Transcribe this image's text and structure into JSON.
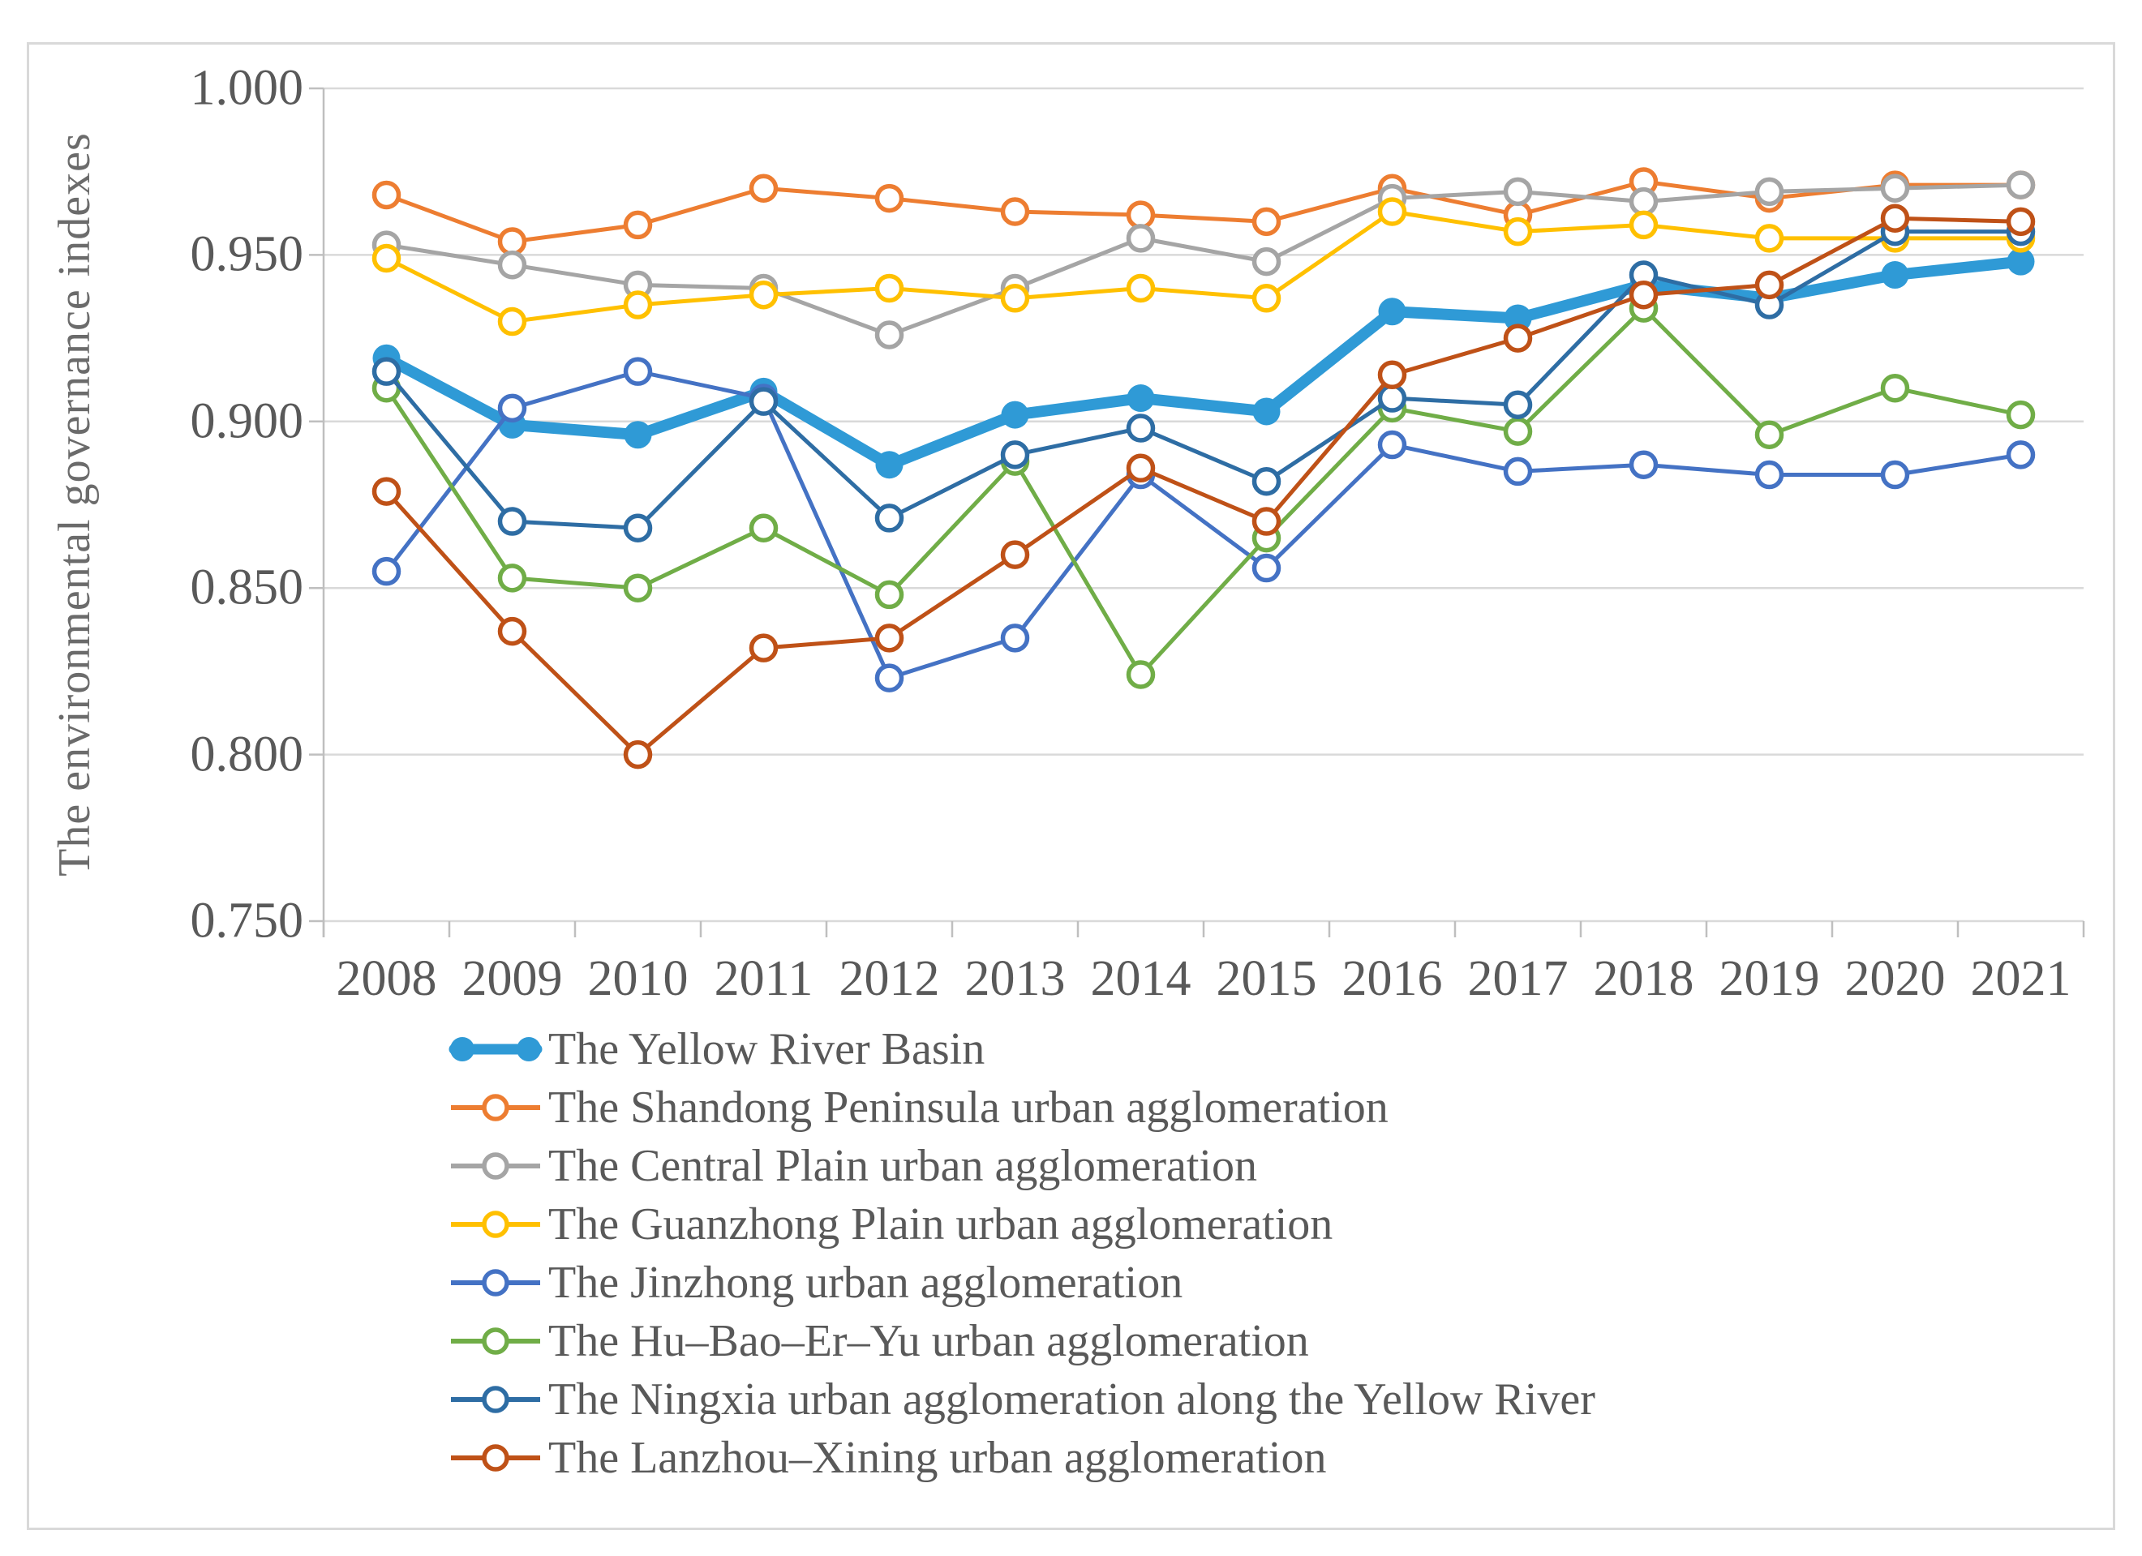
{
  "figure": {
    "background": "#ffffff",
    "frame_border_color": "#d9d9d9"
  },
  "axes": {
    "y_title": "The environmental governance indexes",
    "y_ticks": [
      "1.000",
      "0.950",
      "0.900",
      "0.850",
      "0.800",
      "0.750"
    ],
    "x_ticks": [
      "2008",
      "2009",
      "2010",
      "2011",
      "2012",
      "2013",
      "2014",
      "2015",
      "2016",
      "2017",
      "2018",
      "2019",
      "2020",
      "2021"
    ],
    "grid_color": "#d9d9d9",
    "axis_line_color": "#bfbfbf",
    "tick_label_color": "#595959"
  },
  "chart_data": {
    "type": "line",
    "title": "",
    "xlabel": "",
    "ylabel": "The environmental governance indexes",
    "ylim": [
      0.75,
      1.0
    ],
    "y_tick_step": 0.05,
    "grid": "horizontal",
    "legend_position": "bottom-left",
    "categories": [
      "2008",
      "2009",
      "2010",
      "2011",
      "2012",
      "2013",
      "2014",
      "2015",
      "2016",
      "2017",
      "2018",
      "2019",
      "2020",
      "2021"
    ],
    "series": [
      {
        "name": "The Yellow River Basin",
        "color": "#2f9ad6",
        "line_width": 14,
        "marker": "filled-circle",
        "values": [
          0.919,
          0.899,
          0.896,
          0.909,
          0.887,
          0.902,
          0.907,
          0.903,
          0.933,
          0.931,
          0.941,
          0.937,
          0.944,
          0.948
        ]
      },
      {
        "name": "The Shandong Peninsula urban agglomeration",
        "color": "#ed7d31",
        "line_width": 5,
        "marker": "open-circle",
        "values": [
          0.968,
          0.954,
          0.959,
          0.97,
          0.967,
          0.963,
          0.962,
          0.96,
          0.97,
          0.962,
          0.972,
          0.967,
          0.971,
          0.971
        ]
      },
      {
        "name": "The Central Plain urban agglomeration",
        "color": "#a5a5a5",
        "line_width": 5,
        "marker": "open-circle",
        "values": [
          0.953,
          0.947,
          0.941,
          0.94,
          0.926,
          0.94,
          0.955,
          0.948,
          0.967,
          0.969,
          0.966,
          0.969,
          0.97,
          0.971
        ]
      },
      {
        "name": "The Guanzhong Plain urban agglomeration",
        "color": "#ffc000",
        "line_width": 5,
        "marker": "open-circle",
        "values": [
          0.949,
          0.93,
          0.935,
          0.938,
          0.94,
          0.937,
          0.94,
          0.937,
          0.963,
          0.957,
          0.959,
          0.955,
          0.955,
          0.955
        ]
      },
      {
        "name": "The Jinzhong urban agglomeration",
        "color": "#4472c4",
        "line_width": 5,
        "marker": "open-circle",
        "values": [
          0.855,
          0.904,
          0.915,
          0.907,
          0.823,
          0.835,
          0.884,
          0.856,
          0.893,
          0.885,
          0.887,
          0.884,
          0.884,
          0.89
        ]
      },
      {
        "name": "The Hu–Bao–Er–Yu urban agglomeration",
        "color": "#70ad47",
        "line_width": 5,
        "marker": "open-circle",
        "values": [
          0.91,
          0.853,
          0.85,
          0.868,
          0.848,
          0.888,
          0.824,
          0.865,
          0.904,
          0.897,
          0.934,
          0.896,
          0.91,
          0.902
        ]
      },
      {
        "name": "The Ningxia urban agglomeration along the Yellow River",
        "color": "#2e6da4",
        "line_width": 5,
        "marker": "open-circle",
        "values": [
          0.915,
          0.87,
          0.868,
          0.906,
          0.871,
          0.89,
          0.898,
          0.882,
          0.907,
          0.905,
          0.944,
          0.935,
          0.957,
          0.957
        ]
      },
      {
        "name": "The Lanzhou–Xining urban agglomeration",
        "color": "#bf5117",
        "line_width": 5,
        "marker": "open-circle",
        "values": [
          0.879,
          0.837,
          0.8,
          0.832,
          0.835,
          0.86,
          0.886,
          0.87,
          0.914,
          0.925,
          0.938,
          0.941,
          0.961,
          0.96
        ]
      }
    ]
  }
}
